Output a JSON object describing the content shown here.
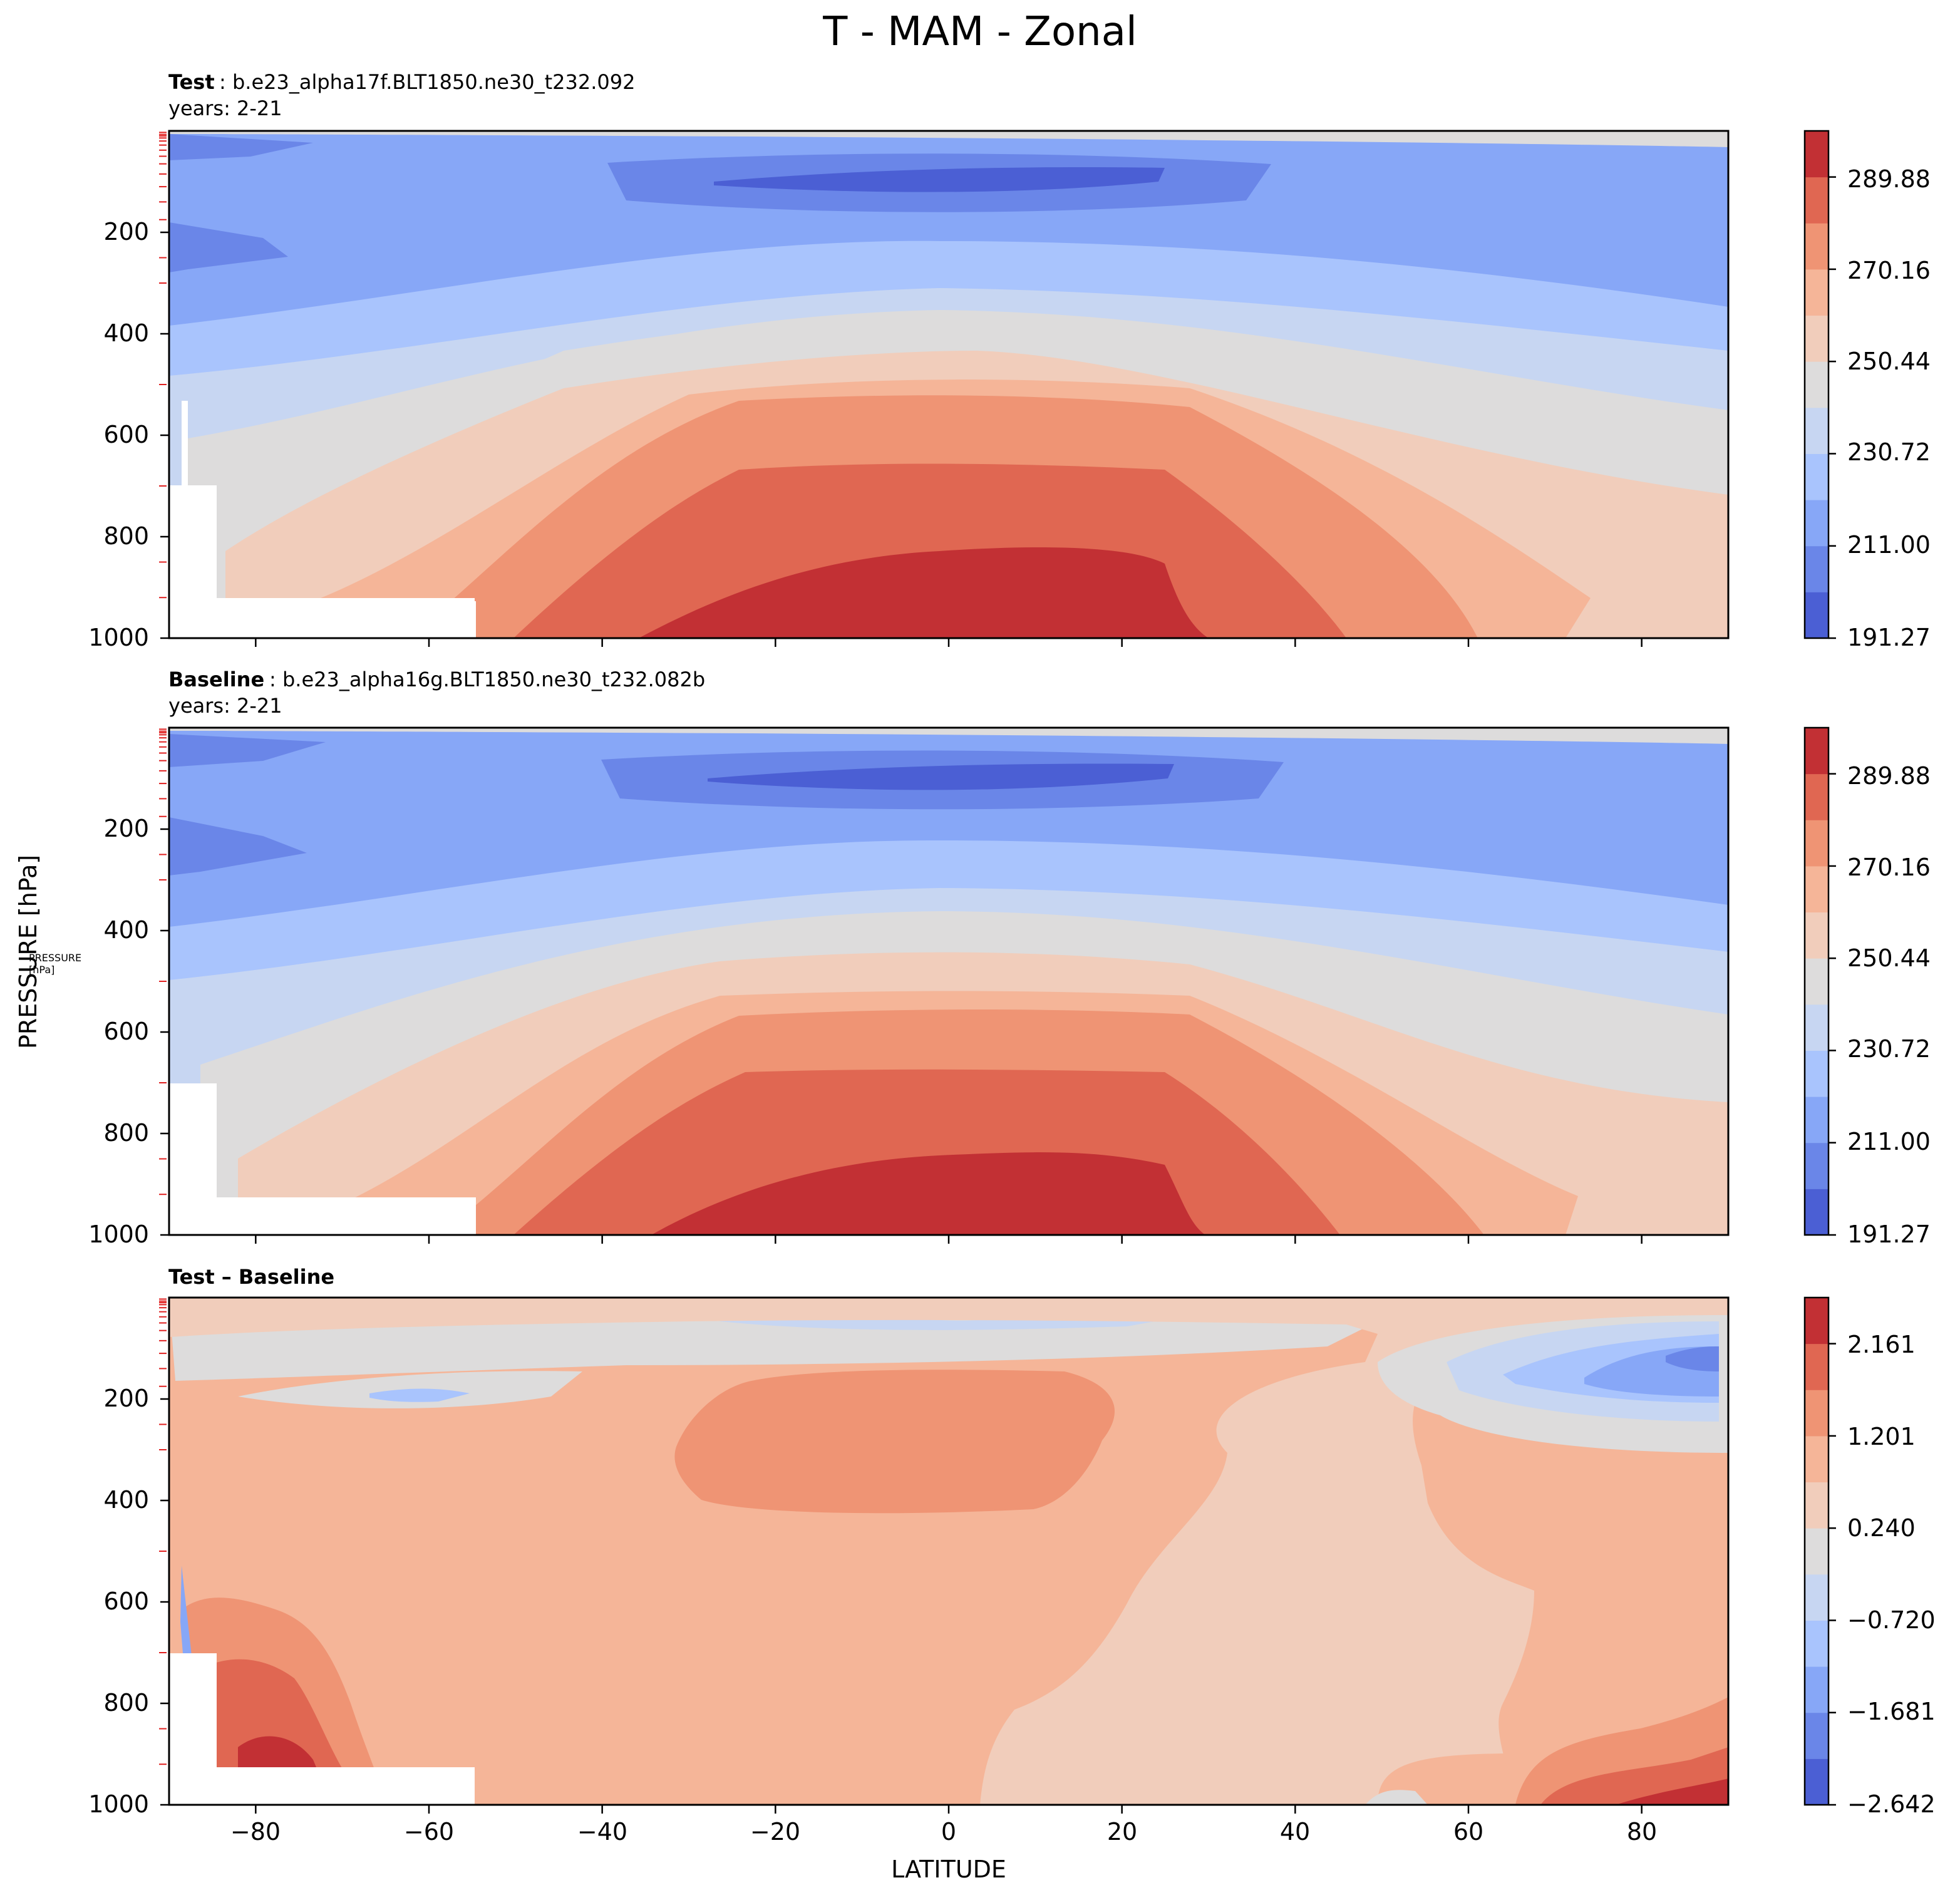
{
  "figure": {
    "title": "T - MAM - Zonal",
    "xlabel": "LATITUDE",
    "ylabel": "PRESSURE [hPa]"
  },
  "palette": {
    "levels11": [
      "#4b5fd4",
      "#6a86e8",
      "#87a7f7",
      "#a9c4fd",
      "#c7d6f2",
      "#dddcdc",
      "#f1cdbb",
      "#f5b598",
      "#ef9474",
      "#e06752",
      "#c23034"
    ]
  },
  "chart_data": [
    {
      "type": "heatmap",
      "panel": "test",
      "label_bold": "Test",
      "label_rest": ": b.e23_alpha17f.BLT1850.ne30_t232.092",
      "years": "years: 2-21",
      "xlim": [
        -90,
        90
      ],
      "ylim": [
        1000,
        0
      ],
      "y_ticks": [
        "200",
        "400",
        "600",
        "800",
        "1000"
      ],
      "x_ticks": [
        -80,
        -60,
        -40,
        -20,
        0,
        20,
        40,
        60,
        80
      ],
      "colorbar_ticks": [
        "289.88",
        "270.16",
        "250.44",
        "230.72",
        "211.00",
        "191.27"
      ],
      "colorbar_range": [
        191.27,
        299.74
      ],
      "summary": {
        "surface_equator_max": 296,
        "tropopause_equator_min": 195
      }
    },
    {
      "type": "heatmap",
      "panel": "baseline",
      "label_bold": "Baseline",
      "label_rest": ": b.e23_alpha16g.BLT1850.ne30_t232.082b",
      "years": "years: 2-21",
      "xlim": [
        -90,
        90
      ],
      "ylim": [
        1000,
        0
      ],
      "y_ticks": [
        "200",
        "400",
        "600",
        "800",
        "1000"
      ],
      "x_ticks": [
        -80,
        -60,
        -40,
        -20,
        0,
        20,
        40,
        60,
        80
      ],
      "colorbar_ticks": [
        "289.88",
        "270.16",
        "250.44",
        "230.72",
        "211.00",
        "191.27"
      ],
      "colorbar_range": [
        191.27,
        299.74
      ]
    },
    {
      "type": "heatmap",
      "panel": "difference",
      "label_bold": "Test – Baseline",
      "xlim": [
        -90,
        90
      ],
      "ylim": [
        1000,
        0
      ],
      "y_ticks": [
        "200",
        "400",
        "600",
        "800",
        "1000"
      ],
      "x_ticks": [
        "−80",
        "−60",
        "−40",
        "−20",
        "0",
        "20",
        "40",
        "60",
        "80"
      ],
      "colorbar_ticks": [
        "2.161",
        "1.201",
        "0.240",
        "−0.720",
        "−1.681",
        "−2.642"
      ],
      "colorbar_range": [
        -2.642,
        2.641
      ],
      "summary": {
        "max_warming_region": "~80S near surface and ~85N near surface",
        "max_cooling_region": "~80N 100-200 hPa"
      }
    }
  ]
}
